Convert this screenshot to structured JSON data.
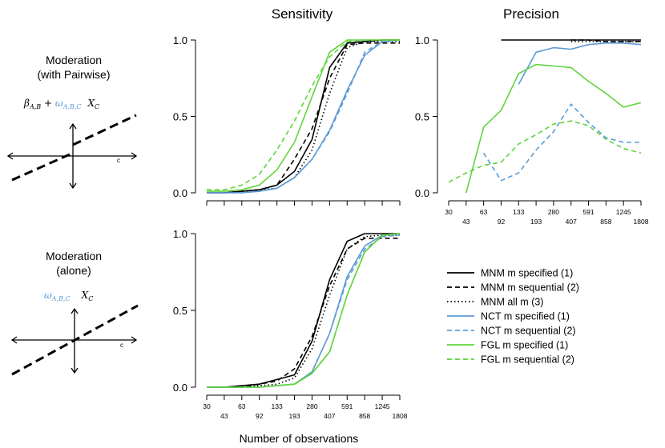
{
  "column_titles": [
    "Sensitivity",
    "Precision"
  ],
  "x_axis_label": "Number of observations",
  "rows": [
    {
      "title_line1": "Moderation",
      "title_line2": "(with Pairwise)",
      "formula_black": "β",
      "formula_black_sub": "A,B",
      "formula_plus": " + ",
      "formula_blue": "ω",
      "formula_blue_sub": "A,B,C",
      "formula_x": "X",
      "formula_x_sub": "C",
      "diagram_label": "c"
    },
    {
      "title_line1": "Moderation",
      "title_line2": "(alone)",
      "formula_blue": "ω",
      "formula_blue_sub": "A,B,C",
      "formula_x": "X",
      "formula_x_sub": "C",
      "diagram_label": "c"
    }
  ],
  "colors": {
    "black": "#000000",
    "blue": "#5b9bd5",
    "green": "#5fd43c"
  },
  "chart_data": [
    {
      "id": "sensitivity-top",
      "type": "line",
      "title": "Sensitivity",
      "xlabel": "Number of observations",
      "ylabel": "",
      "ylim": [
        0,
        1
      ],
      "yticks": [
        "0.0",
        "0.5",
        "1.0"
      ],
      "categories": [
        "30",
        "43",
        "63",
        "92",
        "133",
        "193",
        "280",
        "407",
        "591",
        "858",
        "1245",
        "1808"
      ],
      "show_x_labels": false,
      "series": [
        {
          "name": "MNM m specified (1)",
          "color": "black",
          "dash": "solid",
          "values": [
            0.0,
            0.0,
            0.01,
            0.02,
            0.05,
            0.14,
            0.35,
            0.82,
            0.98,
            0.99,
            1.0,
            1.0
          ]
        },
        {
          "name": "MNM m sequential (2)",
          "color": "black",
          "dash": "dashed",
          "values": [
            0.0,
            0.0,
            0.01,
            0.02,
            0.05,
            0.22,
            0.42,
            0.75,
            0.97,
            0.98,
            0.98,
            0.98
          ]
        },
        {
          "name": "MNM all m (3)",
          "color": "black",
          "dash": "dotted",
          "values": [
            0.0,
            0.0,
            0.01,
            0.02,
            0.03,
            0.1,
            0.28,
            0.65,
            0.95,
            0.99,
            0.99,
            0.99
          ]
        },
        {
          "name": "NCT m specified (1)",
          "color": "blue",
          "dash": "solid",
          "values": [
            0.0,
            0.0,
            0.0,
            0.01,
            0.03,
            0.1,
            0.22,
            0.41,
            0.67,
            0.9,
            0.99,
            1.0
          ]
        },
        {
          "name": "NCT m sequential (2)",
          "color": "blue",
          "dash": "dashed",
          "values": [
            0.0,
            0.0,
            0.0,
            0.01,
            0.03,
            0.1,
            0.22,
            0.4,
            0.65,
            0.92,
            0.99,
            1.0
          ]
        },
        {
          "name": "FGL m specified (1)",
          "color": "green",
          "dash": "solid",
          "values": [
            0.01,
            0.01,
            0.02,
            0.05,
            0.15,
            0.33,
            0.63,
            0.92,
            1.0,
            1.0,
            1.0,
            1.0
          ]
        },
        {
          "name": "FGL m sequential (2)",
          "color": "green",
          "dash": "dashed",
          "values": [
            0.02,
            0.02,
            0.05,
            0.12,
            0.28,
            0.47,
            0.7,
            0.89,
            0.99,
            1.0,
            1.0,
            1.0
          ]
        }
      ]
    },
    {
      "id": "precision-top",
      "type": "line",
      "title": "Precision",
      "xlabel": "",
      "ylabel": "",
      "ylim": [
        0,
        1
      ],
      "yticks": [
        "0.0",
        "0.5",
        "1.0"
      ],
      "categories": [
        "30",
        "43",
        "63",
        "92",
        "133",
        "193",
        "280",
        "407",
        "591",
        "858",
        "1245",
        "1808"
      ],
      "show_x_labels": true,
      "series": [
        {
          "name": "MNM m specified (1)",
          "color": "black",
          "dash": "solid",
          "values": [
            null,
            null,
            null,
            1.0,
            1.0,
            1.0,
            1.0,
            1.0,
            1.0,
            1.0,
            1.0,
            1.0
          ]
        },
        {
          "name": "MNM m sequential (2)",
          "color": "black",
          "dash": "dashed",
          "values": [
            null,
            null,
            null,
            null,
            null,
            null,
            null,
            1.0,
            1.0,
            0.99,
            0.99,
            0.99
          ]
        },
        {
          "name": "MNM all m (3)",
          "color": "black",
          "dash": "dotted",
          "values": [
            null,
            null,
            null,
            null,
            null,
            null,
            null,
            0.99,
            0.99,
            0.99,
            0.99,
            0.99
          ]
        },
        {
          "name": "NCT m specified (1)",
          "color": "blue",
          "dash": "solid",
          "values": [
            null,
            null,
            null,
            null,
            0.71,
            0.92,
            0.95,
            0.94,
            0.97,
            0.98,
            0.98,
            0.97
          ]
        },
        {
          "name": "NCT m sequential (2)",
          "color": "blue",
          "dash": "dashed",
          "values": [
            null,
            null,
            0.26,
            0.08,
            0.13,
            0.28,
            0.4,
            0.58,
            0.46,
            0.36,
            0.33,
            0.33
          ]
        },
        {
          "name": "FGL m specified (1)",
          "color": "green",
          "dash": "solid",
          "values": [
            null,
            0.0,
            0.43,
            0.54,
            0.78,
            0.84,
            0.83,
            0.82,
            0.73,
            0.65,
            0.56,
            0.59
          ]
        },
        {
          "name": "FGL m sequential (2)",
          "color": "green",
          "dash": "dashed",
          "values": [
            0.07,
            0.13,
            0.18,
            0.2,
            0.32,
            0.38,
            0.45,
            0.47,
            0.44,
            0.35,
            0.29,
            0.26
          ]
        }
      ]
    },
    {
      "id": "sensitivity-bottom",
      "type": "line",
      "title": "",
      "xlabel": "Number of observations",
      "ylabel": "",
      "ylim": [
        0,
        1
      ],
      "yticks": [
        "0.0",
        "0.5",
        "1.0"
      ],
      "categories": [
        "30",
        "43",
        "63",
        "92",
        "133",
        "193",
        "280",
        "407",
        "591",
        "858",
        "1245",
        "1808"
      ],
      "show_x_labels": true,
      "series": [
        {
          "name": "MNM m specified (1)",
          "color": "black",
          "dash": "solid",
          "values": [
            0.0,
            0.0,
            0.01,
            0.02,
            0.05,
            0.08,
            0.3,
            0.7,
            0.95,
            1.0,
            1.0,
            1.0
          ]
        },
        {
          "name": "MNM m sequential (2)",
          "color": "black",
          "dash": "dashed",
          "values": [
            0.0,
            0.0,
            0.0,
            0.02,
            0.04,
            0.12,
            0.33,
            0.66,
            0.9,
            0.97,
            0.97,
            0.97
          ]
        },
        {
          "name": "MNM all m (3)",
          "color": "black",
          "dash": "dotted",
          "values": [
            0.0,
            0.0,
            0.0,
            0.01,
            0.02,
            0.06,
            0.25,
            0.6,
            0.9,
            0.98,
            0.99,
            0.99
          ]
        },
        {
          "name": "NCT m specified (1)",
          "color": "blue",
          "dash": "solid",
          "values": [
            0.0,
            0.0,
            0.0,
            0.0,
            0.01,
            0.02,
            0.1,
            0.35,
            0.72,
            0.92,
            0.99,
            1.0
          ]
        },
        {
          "name": "NCT m sequential (2)",
          "color": "blue",
          "dash": "dashed",
          "values": [
            0.0,
            0.0,
            0.0,
            0.0,
            0.01,
            0.02,
            0.1,
            0.35,
            0.7,
            0.9,
            0.98,
            0.99
          ]
        },
        {
          "name": "FGL m specified (1)",
          "color": "green",
          "dash": "solid",
          "values": [
            0.0,
            0.0,
            0.0,
            0.0,
            0.01,
            0.02,
            0.09,
            0.23,
            0.6,
            0.88,
            0.99,
            1.0
          ]
        },
        {
          "name": "FGL m sequential (2)",
          "color": "green",
          "dash": "dashed",
          "values": [
            0.0,
            0.0,
            0.0,
            0.0,
            0.01,
            0.02,
            0.09,
            0.23,
            0.6,
            0.88,
            0.99,
            1.0
          ]
        }
      ]
    }
  ]
}
